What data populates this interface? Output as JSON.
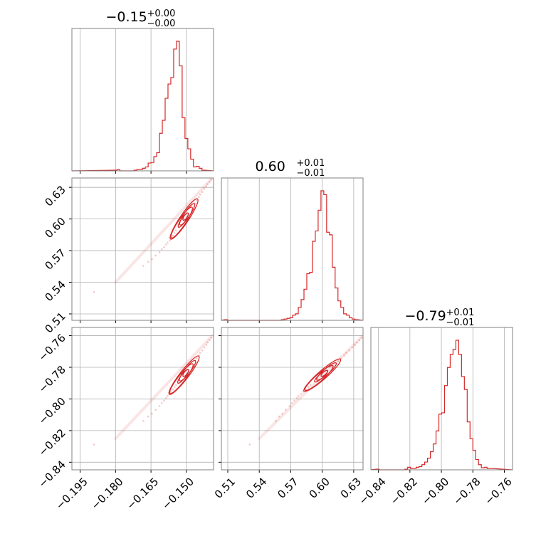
{
  "chart_data": {
    "type": "corner",
    "color": "#d62728",
    "grid": true,
    "parameters": [
      {
        "median": "−0.15",
        "plus": "+0.00",
        "minus": "−0.00"
      },
      {
        "median": "0.60",
        "plus": "+0.01",
        "minus": "−0.01"
      },
      {
        "median": "−0.79",
        "plus": "+0.01",
        "minus": "−0.01"
      }
    ],
    "ranges": [
      [
        -0.1985,
        -0.1385
      ],
      [
        0.5039,
        0.6389
      ],
      [
        -0.8448,
        -0.7548
      ]
    ],
    "ticks": [
      {
        "values": [
          -0.195,
          -0.18,
          -0.165,
          -0.15
        ],
        "labels": [
          "−0.195",
          "−0.180",
          "−0.165",
          "−0.150"
        ]
      },
      {
        "values": [
          0.51,
          0.54,
          0.57,
          0.6,
          0.63
        ],
        "labels": [
          "0.51",
          "0.54",
          "0.57",
          "0.60",
          "0.63"
        ]
      },
      {
        "values": [
          -0.84,
          -0.82,
          -0.8,
          -0.78,
          -0.76
        ],
        "labels": [
          "−0.84",
          "−0.82",
          "−0.80",
          "−0.78",
          "−0.76"
        ]
      }
    ],
    "histograms": [
      {
        "bins": [
          [
            -0.1806,
            -0.1794,
            0.005
          ],
          [
            -0.1794,
            -0.1782,
            0.01
          ],
          [
            -0.1782,
            -0.1722,
            0.0
          ],
          [
            -0.1722,
            -0.171,
            0.005
          ],
          [
            -0.171,
            -0.1686,
            0.01
          ],
          [
            -0.1686,
            -0.1674,
            0.02
          ],
          [
            -0.1674,
            -0.1662,
            0.03
          ],
          [
            -0.1662,
            -0.165,
            0.06
          ],
          [
            -0.165,
            -0.1638,
            0.065
          ],
          [
            -0.1638,
            -0.1626,
            0.11
          ],
          [
            -0.1626,
            -0.1614,
            0.14
          ],
          [
            -0.1614,
            -0.1602,
            0.29
          ],
          [
            -0.1602,
            -0.159,
            0.39
          ],
          [
            -0.159,
            -0.1578,
            0.56
          ],
          [
            -0.1578,
            -0.1566,
            0.67
          ],
          [
            -0.1566,
            -0.1554,
            0.72
          ],
          [
            -0.1554,
            -0.1542,
            0.94
          ],
          [
            -0.1542,
            -0.153,
            1.0
          ],
          [
            -0.153,
            -0.1518,
            0.81
          ],
          [
            -0.1518,
            -0.1506,
            0.41
          ],
          [
            -0.1506,
            -0.1494,
            0.25
          ],
          [
            -0.1494,
            -0.1482,
            0.17
          ],
          [
            -0.1482,
            -0.147,
            0.09
          ],
          [
            -0.147,
            -0.1458,
            0.03
          ],
          [
            -0.1458,
            -0.1446,
            0.035
          ],
          [
            -0.1446,
            -0.1434,
            0.02
          ],
          [
            -0.1434,
            -0.1422,
            0.005
          ]
        ]
      },
      {
        "bins": [
          [
            0.507,
            0.5097,
            0.005
          ],
          [
            0.5097,
            0.561,
            0.0
          ],
          [
            0.561,
            0.5637,
            0.005
          ],
          [
            0.5637,
            0.5664,
            0.01
          ],
          [
            0.5664,
            0.5691,
            0.015
          ],
          [
            0.5691,
            0.5718,
            0.02
          ],
          [
            0.5718,
            0.5745,
            0.04
          ],
          [
            0.5745,
            0.5772,
            0.05
          ],
          [
            0.5772,
            0.5799,
            0.1
          ],
          [
            0.5799,
            0.5826,
            0.16
          ],
          [
            0.5826,
            0.5853,
            0.24
          ],
          [
            0.5853,
            0.588,
            0.36
          ],
          [
            0.588,
            0.5907,
            0.37
          ],
          [
            0.5907,
            0.5934,
            0.61
          ],
          [
            0.5934,
            0.5961,
            0.69
          ],
          [
            0.5961,
            0.5988,
            0.85
          ],
          [
            0.5988,
            0.6015,
            1.0
          ],
          [
            0.6015,
            0.6042,
            0.97
          ],
          [
            0.6042,
            0.6069,
            0.68
          ],
          [
            0.6069,
            0.6096,
            0.66
          ],
          [
            0.6096,
            0.6123,
            0.41
          ],
          [
            0.6123,
            0.615,
            0.25
          ],
          [
            0.615,
            0.6177,
            0.15
          ],
          [
            0.6177,
            0.6204,
            0.1
          ],
          [
            0.6204,
            0.6231,
            0.05
          ],
          [
            0.6231,
            0.6258,
            0.04
          ],
          [
            0.6258,
            0.6285,
            0.02
          ],
          [
            0.6285,
            0.6312,
            0.01
          ],
          [
            0.6312,
            0.6339,
            0.005
          ]
        ]
      },
      {
        "bins": [
          [
            -0.8412,
            -0.8394,
            0.005
          ],
          [
            -0.8394,
            -0.8232,
            0.0
          ],
          [
            -0.8232,
            -0.8214,
            0.005
          ],
          [
            -0.8214,
            -0.8196,
            0.02
          ],
          [
            -0.8196,
            -0.8178,
            0.01
          ],
          [
            -0.8178,
            -0.816,
            0.01
          ],
          [
            -0.816,
            -0.8142,
            0.02
          ],
          [
            -0.8142,
            -0.8124,
            0.025
          ],
          [
            -0.8124,
            -0.8106,
            0.04
          ],
          [
            -0.8106,
            -0.8088,
            0.06
          ],
          [
            -0.8088,
            -0.807,
            0.09
          ],
          [
            -0.807,
            -0.8052,
            0.14
          ],
          [
            -0.8052,
            -0.8034,
            0.2
          ],
          [
            -0.8034,
            -0.8016,
            0.3
          ],
          [
            -0.8016,
            -0.7998,
            0.43
          ],
          [
            -0.7998,
            -0.798,
            0.44
          ],
          [
            -0.798,
            -0.7962,
            0.65
          ],
          [
            -0.7962,
            -0.7944,
            0.79
          ],
          [
            -0.7944,
            -0.7926,
            0.89
          ],
          [
            -0.7926,
            -0.7908,
            0.93
          ],
          [
            -0.7908,
            -0.789,
            1.0
          ],
          [
            -0.789,
            -0.7872,
            0.89
          ],
          [
            -0.7872,
            -0.7854,
            0.72
          ],
          [
            -0.7854,
            -0.7836,
            0.62
          ],
          [
            -0.7836,
            -0.7818,
            0.37
          ],
          [
            -0.7818,
            -0.78,
            0.24
          ],
          [
            -0.78,
            -0.7782,
            0.15
          ],
          [
            -0.7782,
            -0.7764,
            0.08
          ],
          [
            -0.7764,
            -0.7746,
            0.04
          ],
          [
            -0.7746,
            -0.7728,
            0.015
          ],
          [
            -0.7728,
            -0.771,
            0.02
          ],
          [
            -0.771,
            -0.7692,
            0.01
          ],
          [
            -0.7692,
            -0.7674,
            0.01
          ]
        ]
      }
    ],
    "joint_curve": [
      [
        -0.192,
        0.528,
        -0.83
      ],
      [
        -0.18,
        0.54,
        -0.825
      ],
      [
        -0.174,
        0.548,
        -0.8195
      ],
      [
        -0.168,
        0.556,
        -0.8135
      ],
      [
        -0.164,
        0.563,
        -0.8085
      ],
      [
        -0.16,
        0.572,
        -0.802
      ],
      [
        -0.157,
        0.58,
        -0.7965
      ],
      [
        -0.154,
        0.59,
        -0.7905
      ],
      [
        -0.151,
        0.6,
        -0.785
      ],
      [
        -0.148,
        0.61,
        -0.779
      ],
      [
        -0.145,
        0.62,
        -0.773
      ],
      [
        -0.142,
        0.63,
        -0.7665
      ],
      [
        -0.139,
        0.639,
        -0.76
      ]
    ]
  }
}
